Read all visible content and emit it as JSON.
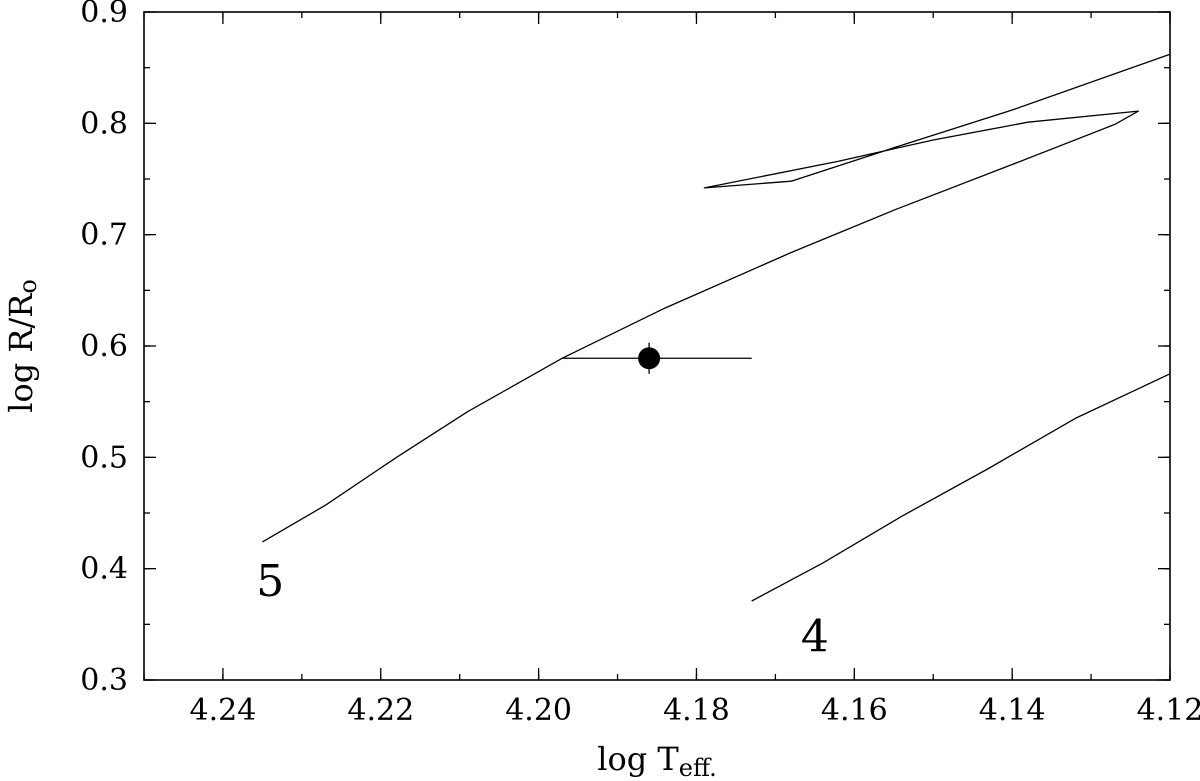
{
  "chart_data": {
    "type": "line",
    "xlabel": "log T",
    "xlabel_sub": "eff.",
    "ylabel": "log R/R",
    "ylabel_sub": "o",
    "xlim": [
      4.25,
      4.12
    ],
    "ylim": [
      0.3,
      0.9
    ],
    "x_ticks": [
      4.24,
      4.22,
      4.2,
      4.18,
      4.16,
      4.14,
      4.12
    ],
    "x_tick_labels": [
      "4.24",
      "4.22",
      "4.20",
      "4.18",
      "4.16",
      "4.14",
      "4.12"
    ],
    "y_ticks": [
      0.3,
      0.4,
      0.5,
      0.6,
      0.7,
      0.8,
      0.9
    ],
    "y_tick_labels": [
      "0.3",
      "0.4",
      "0.5",
      "0.6",
      "0.7",
      "0.8",
      "0.9"
    ],
    "grid": false,
    "series": [
      {
        "label": "5",
        "label_at": [
          4.234,
          0.39
        ],
        "points": [
          [
            4.235,
            0.424
          ],
          [
            4.227,
            0.457
          ],
          [
            4.218,
            0.5
          ],
          [
            4.209,
            0.541
          ],
          [
            4.197,
            0.589
          ],
          [
            4.184,
            0.634
          ],
          [
            4.168,
            0.684
          ],
          [
            4.155,
            0.722
          ],
          [
            4.14,
            0.763
          ],
          [
            4.127,
            0.799
          ],
          [
            4.124,
            0.811
          ],
          [
            4.138,
            0.801
          ],
          [
            4.15,
            0.785
          ],
          [
            4.162,
            0.766
          ],
          [
            4.179,
            0.742
          ],
          [
            4.168,
            0.748
          ],
          [
            4.155,
            0.778
          ],
          [
            4.14,
            0.812
          ],
          [
            4.12,
            0.862
          ]
        ]
      },
      {
        "label": "4",
        "label_at": [
          4.165,
          0.34
        ],
        "points": [
          [
            4.173,
            0.371
          ],
          [
            4.164,
            0.405
          ],
          [
            4.154,
            0.447
          ],
          [
            4.143,
            0.49
          ],
          [
            4.132,
            0.535
          ],
          [
            4.12,
            0.575
          ]
        ]
      }
    ],
    "observation": {
      "x": 4.186,
      "y": 0.589,
      "x_err_low": 4.197,
      "x_err_high": 4.173,
      "y_err": 0.014
    }
  }
}
